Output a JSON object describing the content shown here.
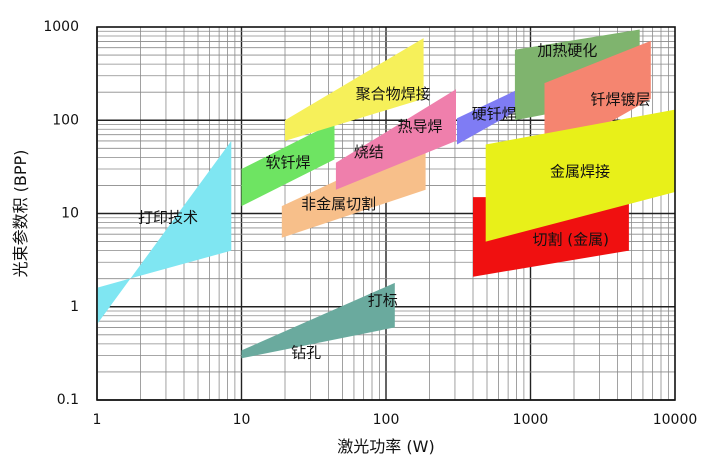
{
  "chart_data": {
    "type": "area",
    "title": "",
    "xlabel": "激光功率 (W)",
    "ylabel": "光束参数积 (BPP)",
    "x_scale": "log",
    "y_scale": "log",
    "xlim": [
      1,
      10000
    ],
    "ylim": [
      0.1,
      1000
    ],
    "x_ticks": [
      1,
      10,
      100,
      1000,
      10000
    ],
    "x_tick_labels": [
      "1",
      "10",
      "100",
      "1000",
      "10000"
    ],
    "y_ticks": [
      0.1,
      1,
      10,
      100,
      1000
    ],
    "y_tick_labels": [
      "0.1",
      "1",
      "10",
      "100",
      "1000"
    ],
    "grid": true,
    "regions": [
      {
        "name": "打印技术",
        "color": "#7fe6f2",
        "label_at": [
          3.1,
          9
        ],
        "polygon": [
          [
            1,
            0.65
          ],
          [
            8.5,
            60
          ],
          [
            8.5,
            4
          ],
          [
            1,
            1.6
          ]
        ]
      },
      {
        "name": "钻孔",
        "color": "#6aaa9e",
        "label_at": [
          28,
          0.32
        ],
        "polygon": [
          [
            10,
            0.28
          ],
          [
            10,
            0.34
          ],
          [
            115,
            1.8
          ],
          [
            115,
            0.6
          ]
        ]
      },
      {
        "name": "打标",
        "color": "#6aaa9e",
        "label_at": [
          95,
          1.15
        ],
        "polygon": [
          [
            10,
            0.28
          ],
          [
            10,
            0.34
          ],
          [
            115,
            1.8
          ],
          [
            115,
            0.6
          ]
        ]
      },
      {
        "name": "软钎焊",
        "color": "#6ee462",
        "label_at": [
          21,
          35
        ],
        "polygon": [
          [
            10,
            30
          ],
          [
            44,
            95
          ],
          [
            44,
            38
          ],
          [
            10,
            12
          ]
        ]
      },
      {
        "name": "非金属切割",
        "color": "#f7bf8a",
        "label_at": [
          47,
          12.5
        ],
        "polygon": [
          [
            19,
            12
          ],
          [
            188,
            63
          ],
          [
            188,
            18
          ],
          [
            19,
            5.5
          ]
        ]
      },
      {
        "name": "聚合物焊接",
        "color": "#f6f05a",
        "label_at": [
          112,
          190
        ],
        "polygon": [
          [
            20,
            100
          ],
          [
            182,
            760
          ],
          [
            182,
            170
          ],
          [
            20,
            60
          ]
        ]
      },
      {
        "name": "烧结",
        "color": "#ef7fac",
        "label_at": [
          76,
          45
        ],
        "polygon": [
          [
            45,
            35
          ],
          [
            305,
            215
          ],
          [
            305,
            60
          ],
          [
            45,
            18
          ]
        ]
      },
      {
        "name": "热导焊",
        "color": "#ef7fac",
        "label_at": [
          172,
          85
        ],
        "polygon": [
          [
            45,
            35
          ],
          [
            305,
            215
          ],
          [
            305,
            60
          ],
          [
            45,
            18
          ]
        ]
      },
      {
        "name": "硬钎焊",
        "color": "#7f7cf4",
        "label_at": [
          560,
          115
        ],
        "polygon": [
          [
            310,
            105
          ],
          [
            1360,
            310
          ],
          [
            1360,
            200
          ],
          [
            310,
            55
          ]
        ]
      },
      {
        "name": "加热硬化",
        "color": "#7fb46e",
        "label_at": [
          1800,
          550
        ],
        "polygon": [
          [
            780,
            570
          ],
          [
            5700,
            940
          ],
          [
            5700,
            180
          ],
          [
            780,
            100
          ]
        ]
      },
      {
        "name": "钎焊镀层",
        "color": "#f58570",
        "label_at": [
          4200,
          165
        ],
        "polygon": [
          [
            1250,
            250
          ],
          [
            6800,
            710
          ],
          [
            6800,
            170
          ],
          [
            1250,
            38
          ]
        ]
      },
      {
        "name": "切割 (金属)",
        "color": "#f01010",
        "label_at": [
          1900,
          5.2
        ],
        "polygon": [
          [
            400,
            15
          ],
          [
            4800,
            15
          ],
          [
            4800,
            4
          ],
          [
            400,
            2.1
          ]
        ]
      },
      {
        "name": "金属焊接",
        "color": "#e8f019",
        "label_at": [
          2200,
          28
        ],
        "polygon": [
          [
            490,
            55
          ],
          [
            10000,
            130
          ],
          [
            10000,
            17
          ],
          [
            490,
            5
          ]
        ]
      }
    ]
  }
}
